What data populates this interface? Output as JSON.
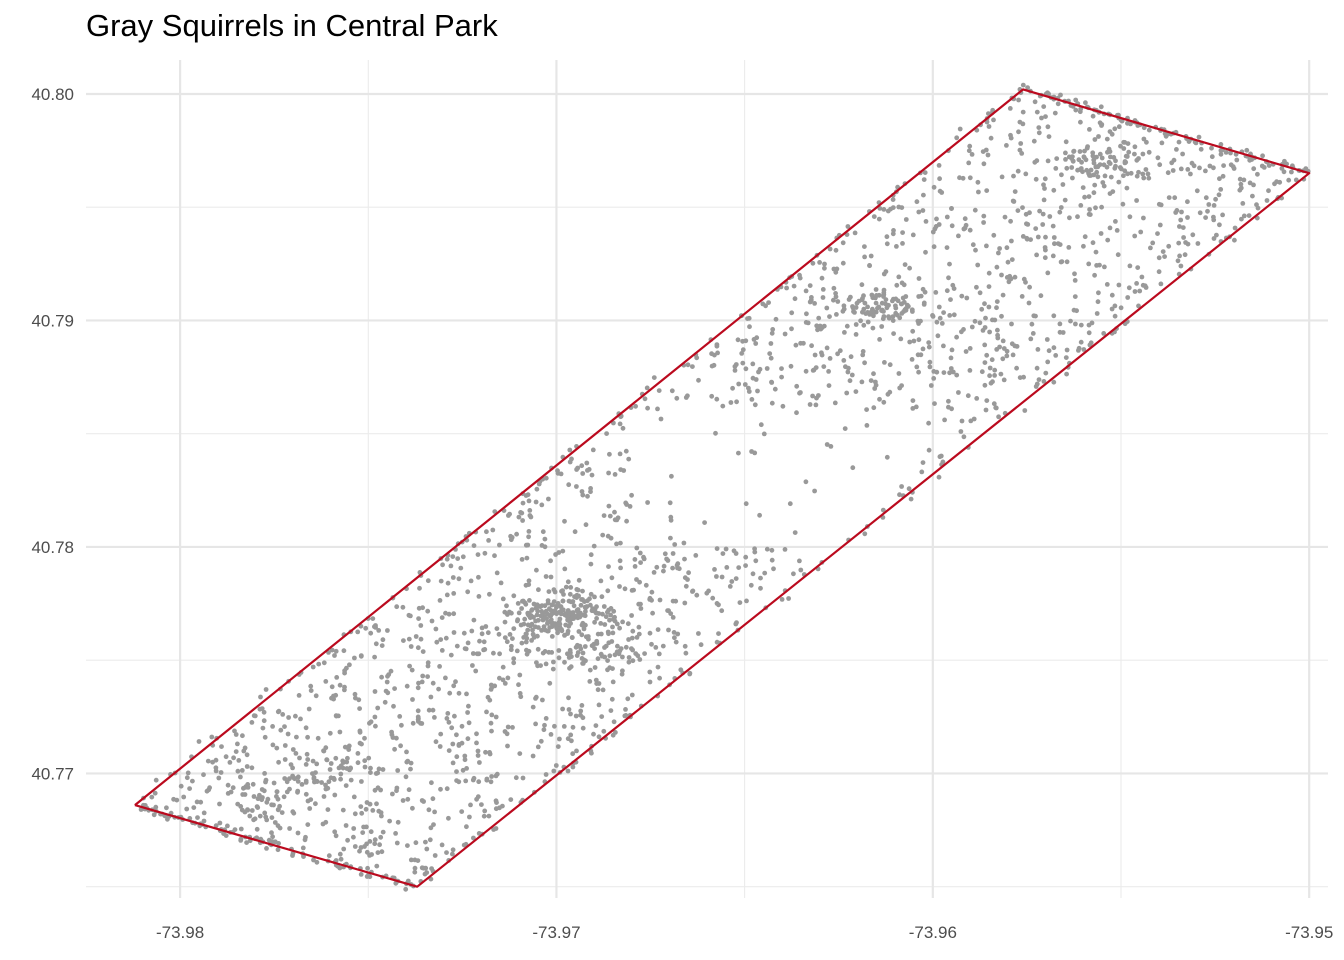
{
  "chart_data": {
    "type": "scatter",
    "title": "Gray Squirrels in Central Park",
    "xlabel": "",
    "ylabel": "",
    "xlim": [
      -73.9825,
      -73.9495
    ],
    "ylim": [
      40.7645,
      40.8015
    ],
    "x_ticks": [
      -73.98,
      -73.97,
      -73.96,
      -73.95
    ],
    "x_tick_labels": [
      "-73.98",
      "-73.97",
      "-73.96",
      "-73.95"
    ],
    "y_ticks": [
      40.77,
      40.78,
      40.79,
      40.8
    ],
    "y_tick_labels": [
      "40.77",
      "40.78",
      "40.79",
      "40.80"
    ],
    "grid": true,
    "point_color": "#999999",
    "boundary_color": "#bb0a1e",
    "series": [
      {
        "type": "polygon",
        "points": [
          [
            -73.9812,
            40.7686
          ],
          [
            -73.9737,
            40.765
          ],
          [
            -73.95,
            40.7965
          ],
          [
            -73.9576,
            40.8002
          ],
          [
            -73.9812,
            40.7686
          ]
        ]
      },
      {
        "type": "points",
        "description_only": false,
        "count": 2300,
        "clusters": [
          [
            -73.97,
            40.777,
            0.0012,
            0.0008,
            180
          ],
          [
            -73.969,
            40.7755,
            0.0015,
            0.001,
            80
          ],
          [
            -73.9615,
            40.7905,
            0.0012,
            0.0006,
            80
          ],
          [
            -73.9555,
            40.797,
            0.001,
            0.0008,
            70
          ],
          [
            -73.976,
            40.77,
            0.0012,
            0.0012,
            60
          ],
          [
            -73.978,
            40.7685,
            0.001,
            0.001,
            50
          ]
        ],
        "sparse_region": [
          -73.968,
          40.786,
          -73.96,
          40.78
        ]
      }
    ]
  }
}
